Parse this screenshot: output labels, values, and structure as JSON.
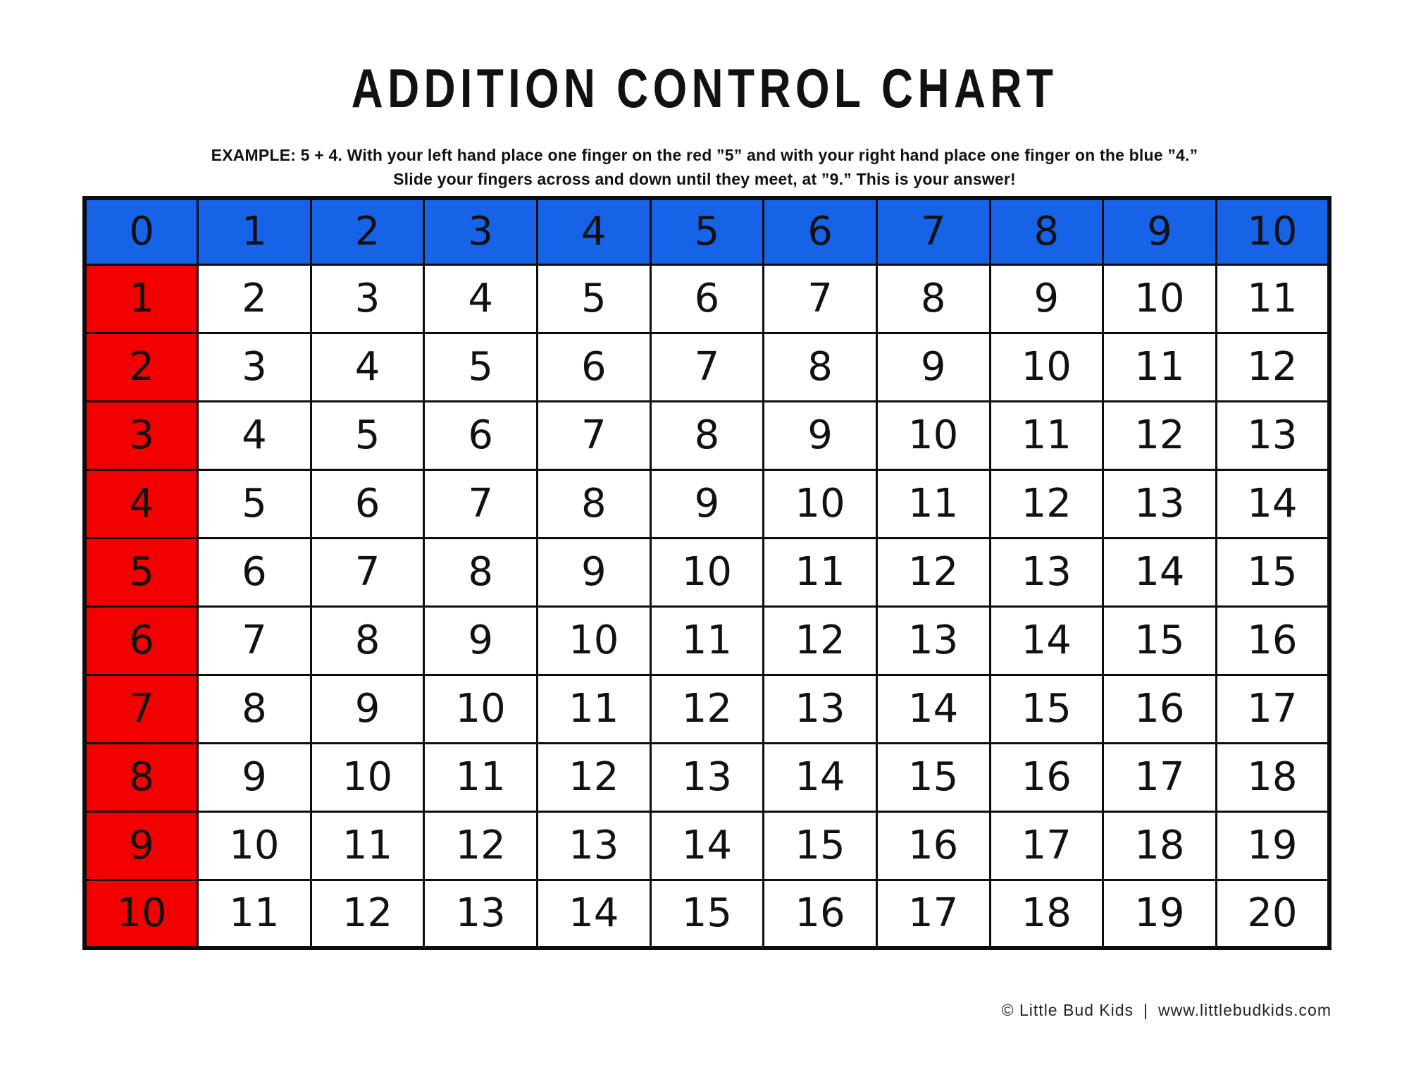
{
  "page": {
    "title": "ADDITION CONTROL CHART",
    "example_line1": "EXAMPLE: 5 + 4. With your left hand place one finger on the red ”5” and with your right hand place one finger on the blue ”4.”",
    "example_line2": "Slide your fingers across and down until they meet, at ”9.” This is your answer!",
    "footer_copyright": "© Little Bud Kids",
    "footer_separator": "|",
    "footer_url": "www.littlebudkids.com"
  },
  "colors": {
    "header_blue": "#1763E8",
    "row_red": "#F20000",
    "grid_black": "#0D0D0D",
    "background": "#FFFFFF"
  },
  "chart_data": {
    "type": "table",
    "title": "ADDITION CONTROL CHART",
    "header_row": [
      "0",
      "1",
      "2",
      "3",
      "4",
      "5",
      "6",
      "7",
      "8",
      "9",
      "10"
    ],
    "rows": [
      {
        "label": "1",
        "values": [
          "2",
          "3",
          "4",
          "5",
          "6",
          "7",
          "8",
          "9",
          "10",
          "11"
        ]
      },
      {
        "label": "2",
        "values": [
          "3",
          "4",
          "5",
          "6",
          "7",
          "8",
          "9",
          "10",
          "11",
          "12"
        ]
      },
      {
        "label": "3",
        "values": [
          "4",
          "5",
          "6",
          "7",
          "8",
          "9",
          "10",
          "11",
          "12",
          "13"
        ]
      },
      {
        "label": "4",
        "values": [
          "5",
          "6",
          "7",
          "8",
          "9",
          "10",
          "11",
          "12",
          "13",
          "14"
        ]
      },
      {
        "label": "5",
        "values": [
          "6",
          "7",
          "8",
          "9",
          "10",
          "11",
          "12",
          "13",
          "14",
          "15"
        ]
      },
      {
        "label": "6",
        "values": [
          "7",
          "8",
          "9",
          "10",
          "11",
          "12",
          "13",
          "14",
          "15",
          "16"
        ]
      },
      {
        "label": "7",
        "values": [
          "8",
          "9",
          "10",
          "11",
          "12",
          "13",
          "14",
          "15",
          "16",
          "17"
        ]
      },
      {
        "label": "8",
        "values": [
          "9",
          "10",
          "11",
          "12",
          "13",
          "14",
          "15",
          "16",
          "17",
          "18"
        ]
      },
      {
        "label": "9",
        "values": [
          "10",
          "11",
          "12",
          "13",
          "14",
          "15",
          "16",
          "17",
          "18",
          "19"
        ]
      },
      {
        "label": "10",
        "values": [
          "11",
          "12",
          "13",
          "14",
          "15",
          "16",
          "17",
          "18",
          "19",
          "20"
        ]
      }
    ]
  }
}
